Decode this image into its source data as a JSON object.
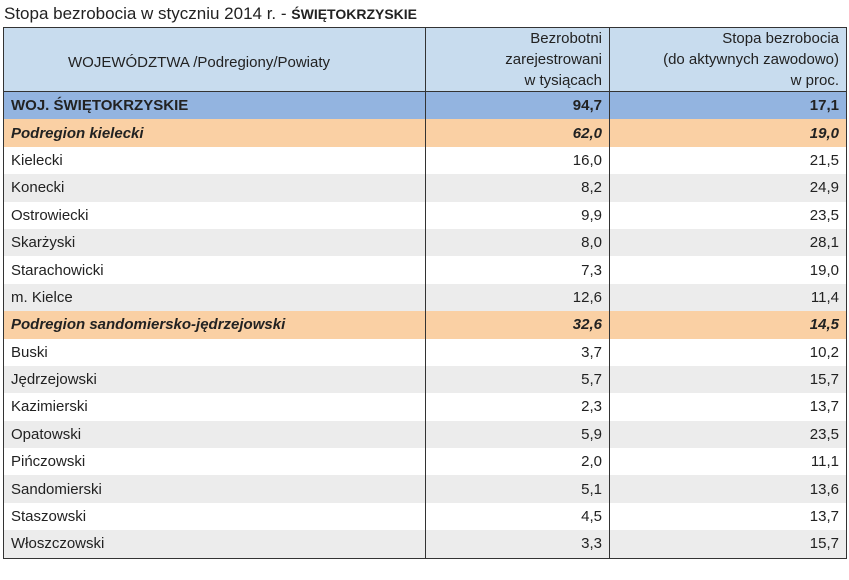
{
  "title": {
    "main": "Stopa bezrobocia w styczniu 2014 r. - ",
    "region": "ŚWIĘTOKRZYSKIE"
  },
  "headers": {
    "col1": "WOJEWÓDZTWA /Podregiony/Powiaty",
    "col2": [
      "Bezrobotni",
      "zarejestrowani",
      "w tysiącach"
    ],
    "col3": [
      "Stopa bezrobocia",
      "(do aktywnych zawodowo)",
      "w proc."
    ]
  },
  "rows": [
    {
      "name": "WOJ. ŚWIĘTOKRZYSKIE",
      "unemployed": "94,7",
      "rate": "17,1",
      "kind": "total"
    },
    {
      "name": "Podregion kielecki",
      "unemployed": "62,0",
      "rate": "19,0",
      "kind": "sub"
    },
    {
      "name": "Kielecki",
      "unemployed": "16,0",
      "rate": "21,5",
      "kind": "odd"
    },
    {
      "name": "Konecki",
      "unemployed": "8,2",
      "rate": "24,9",
      "kind": "even"
    },
    {
      "name": "Ostrowiecki",
      "unemployed": "9,9",
      "rate": "23,5",
      "kind": "odd"
    },
    {
      "name": "Skarżyski",
      "unemployed": "8,0",
      "rate": "28,1",
      "kind": "even"
    },
    {
      "name": "Starachowicki",
      "unemployed": "7,3",
      "rate": "19,0",
      "kind": "odd"
    },
    {
      "name": "m. Kielce",
      "unemployed": "12,6",
      "rate": "11,4",
      "kind": "even"
    },
    {
      "name": "Podregion sandomiersko-jędrzejowski",
      "unemployed": "32,6",
      "rate": "14,5",
      "kind": "sub"
    },
    {
      "name": "Buski",
      "unemployed": "3,7",
      "rate": "10,2",
      "kind": "odd"
    },
    {
      "name": "Jędrzejowski",
      "unemployed": "5,7",
      "rate": "15,7",
      "kind": "even"
    },
    {
      "name": "Kazimierski",
      "unemployed": "2,3",
      "rate": "13,7",
      "kind": "odd"
    },
    {
      "name": "Opatowski",
      "unemployed": "5,9",
      "rate": "23,5",
      "kind": "even"
    },
    {
      "name": "Pińczowski",
      "unemployed": "2,0",
      "rate": "11,1",
      "kind": "odd"
    },
    {
      "name": "Sandomierski",
      "unemployed": "5,1",
      "rate": "13,6",
      "kind": "even"
    },
    {
      "name": "Staszowski",
      "unemployed": "4,5",
      "rate": "13,7",
      "kind": "odd"
    },
    {
      "name": "Włoszczowski",
      "unemployed": "3,3",
      "rate": "15,7",
      "kind": "even"
    }
  ],
  "colors": {
    "header_bg": "#c8dcee",
    "total_bg": "#93b4e0",
    "subregion_bg": "#fad0a4",
    "stripe_bg": "#ececec"
  }
}
